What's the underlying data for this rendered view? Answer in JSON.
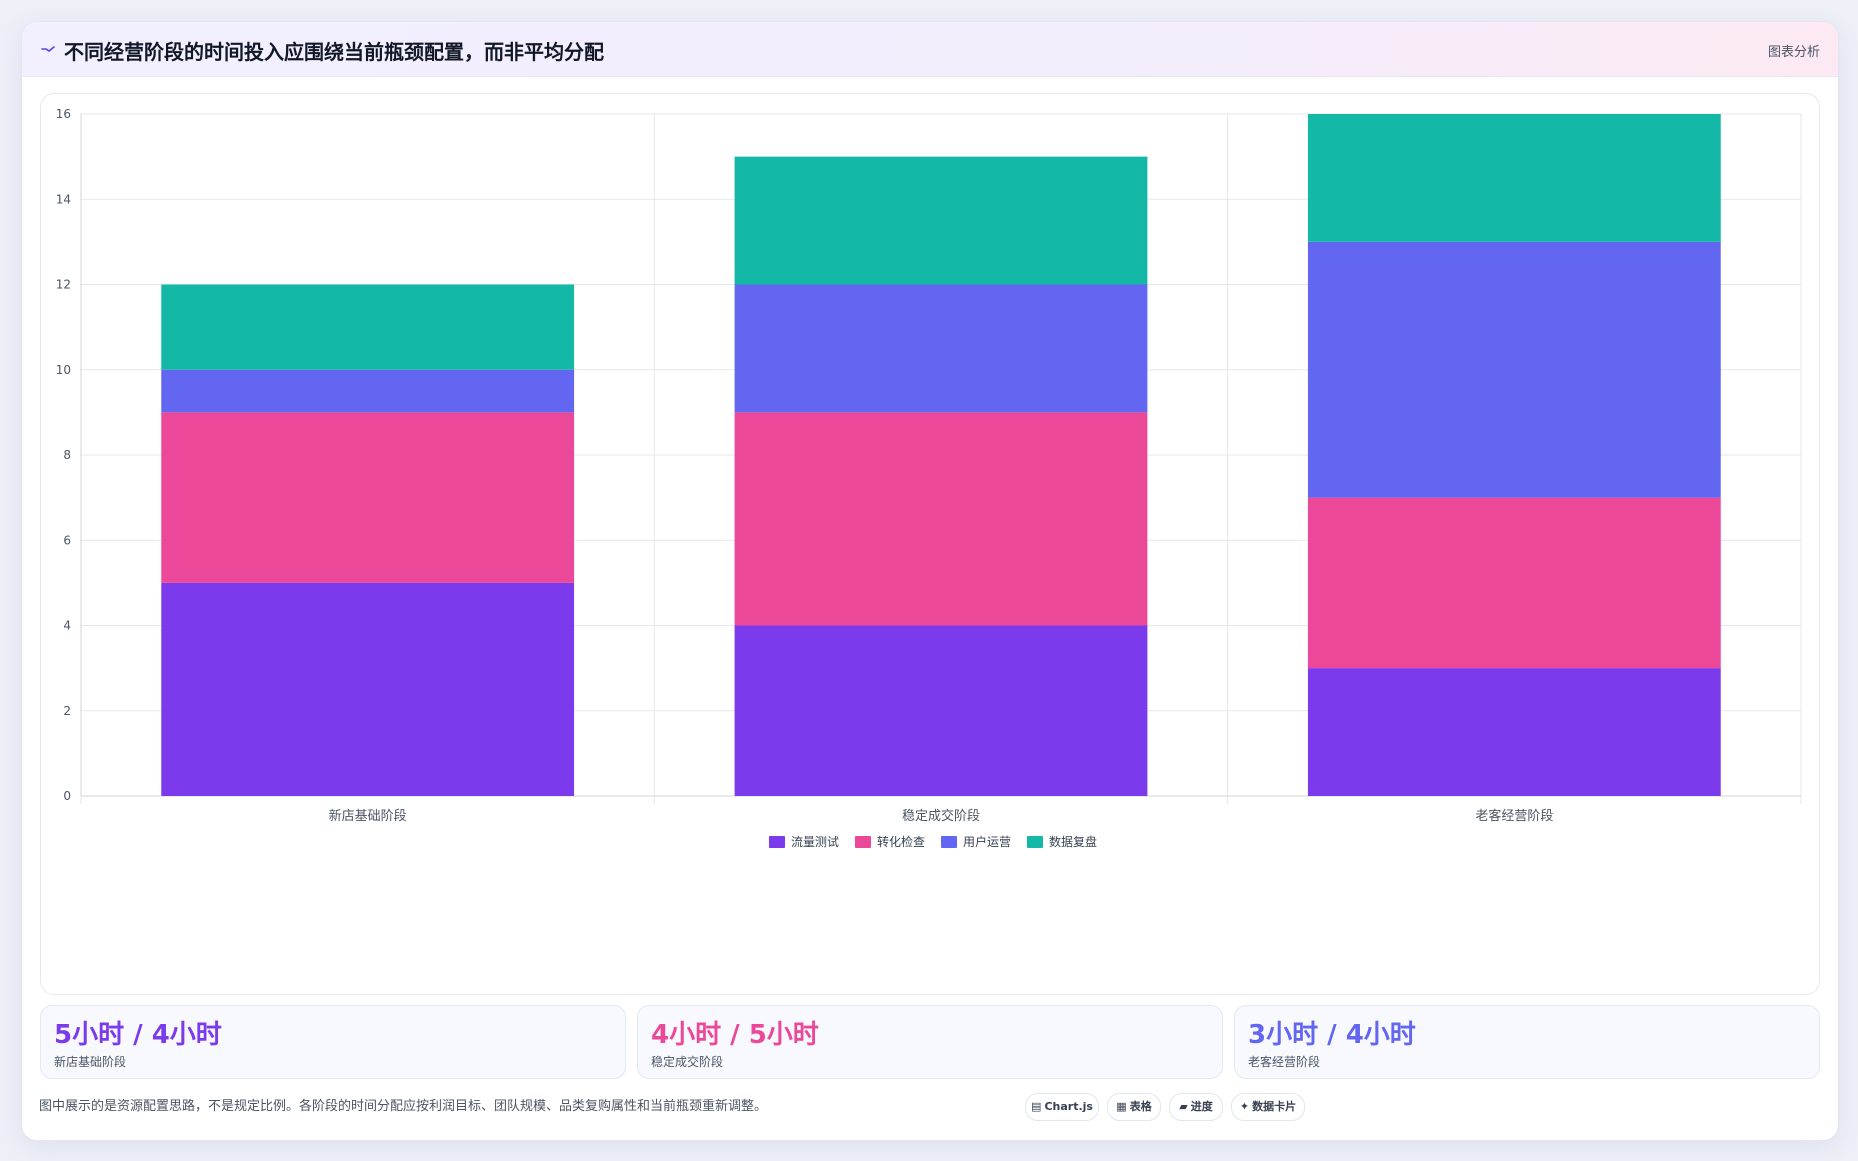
{
  "header": {
    "title": "不同经营阶段的时间投入应围绕当前瓶颈配置，而非平均分配",
    "menu_label": "图表分析"
  },
  "chart_data": {
    "type": "bar",
    "stacked": true,
    "title": "",
    "xlabel": "",
    "ylabel": "",
    "categories": [
      "新店基础阶段",
      "稳定成交阶段",
      "老客经营阶段"
    ],
    "ylim": [
      0,
      16
    ],
    "yticks": [
      0,
      2,
      4,
      6,
      8,
      10,
      12,
      14,
      16
    ],
    "grid": true,
    "legend_position": "bottom",
    "series": [
      {
        "name": "流量测试",
        "color": "#7c3aed",
        "values": [
          5,
          4,
          3
        ]
      },
      {
        "name": "转化检查",
        "color": "#ec4899",
        "values": [
          4,
          5,
          4
        ]
      },
      {
        "name": "用户运营",
        "color": "#6366f1",
        "values": [
          1,
          3,
          6
        ]
      },
      {
        "name": "数据复盘",
        "color": "#14b8a6",
        "values": [
          2,
          3,
          3
        ]
      }
    ]
  },
  "stats": [
    {
      "value": "5小时 / 4小时",
      "label": "新店基础阶段",
      "color": "#7c3aed"
    },
    {
      "value": "4小时 / 5小时",
      "label": "稳定成交阶段",
      "color": "#ec4899"
    },
    {
      "value": "3小时 / 4小时",
      "label": "老客经营阶段",
      "color": "#6366f1"
    }
  ],
  "footer": {
    "note": "图中展示的是资源配置思路，不是规定比例。各阶段的时间分配应按利润目标、团队规模、品类复购属性和当前瓶颈重新调整。",
    "chips": [
      {
        "icon": "chart-icon",
        "glyph": "▤",
        "label": "Chart.js"
      },
      {
        "icon": "table-icon",
        "glyph": "▦",
        "label": "表格"
      },
      {
        "icon": "progress-icon",
        "glyph": "▰",
        "label": "进度"
      },
      {
        "icon": "card-icon",
        "glyph": "✦",
        "label": "数据卡片"
      }
    ]
  }
}
